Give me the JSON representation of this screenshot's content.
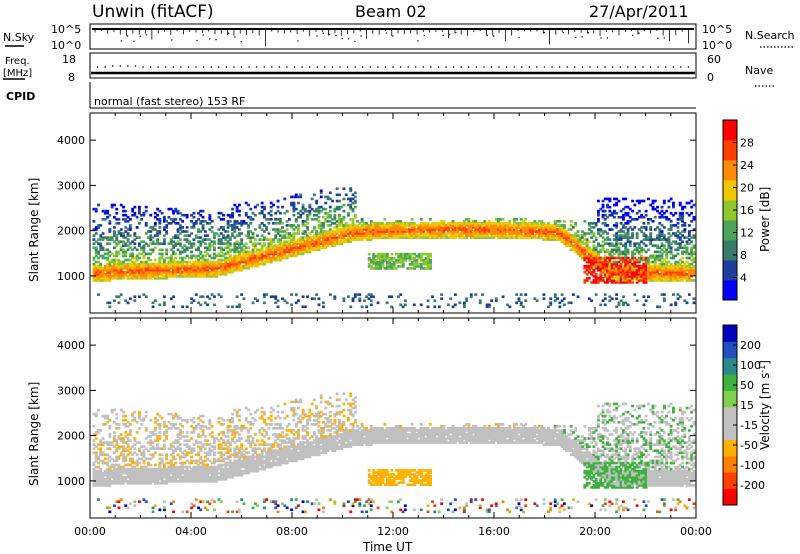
{
  "header": {
    "station": "Unwin (fitACF)",
    "beam": "Beam 02",
    "date": "27/Apr/2011"
  },
  "strip_panels": {
    "nsky": {
      "label": "N.Sky",
      "ticks": [
        "10^5",
        "10^0"
      ],
      "right_label": "N.Search",
      "right_ticks": [
        "10^5",
        "10^0"
      ]
    },
    "freq": {
      "label_line1": "Freq.",
      "label_line2": "[MHz]",
      "ticks": [
        "18",
        "8"
      ],
      "right_label": "Nave",
      "right_ticks": [
        "60",
        "0"
      ]
    },
    "cpid": {
      "label": "CPID",
      "text": "normal (fast stereo) 153 RF"
    }
  },
  "colors": {
    "power_scale": [
      "#0000ff",
      "#1e3fa0",
      "#3a7a6a",
      "#4aa45a",
      "#90c830",
      "#f0c800",
      "#ff8c00",
      "#ff4000",
      "#ff0000"
    ],
    "velocity_scale": [
      "#ff0000",
      "#ff4000",
      "#ff8000",
      "#ffb000",
      "#c0c0c0",
      "#c0c0c0",
      "#80d050",
      "#40b040",
      "#2a8a8a",
      "#2050c0",
      "#0000c0"
    ],
    "ground_scatter": "#c0c0c0"
  },
  "chart_data": [
    {
      "type": "heatmap",
      "title": "",
      "xlabel": "",
      "ylabel": "Slant Range [km]",
      "x_ticks": [
        "00:00",
        "04:00",
        "08:00",
        "12:00",
        "16:00",
        "20:00",
        "00:00"
      ],
      "y_ticks": [
        "1000",
        "2000",
        "3000",
        "4000"
      ],
      "xlim": [
        0,
        24
      ],
      "ylim": [
        180,
        4600
      ],
      "colorbar": {
        "label": "Power [dB]",
        "ticks": [
          "4",
          "8",
          "12",
          "16",
          "20",
          "24",
          "28"
        ],
        "range": [
          0,
          30
        ]
      },
      "features": [
        {
          "type": "main_echo_band",
          "time_range_h": [
            0,
            10.5
          ],
          "range_km_start": 1050,
          "range_km_peak": 1950
        },
        {
          "type": "plateau_band",
          "time_range_h": [
            10.5,
            18.5
          ],
          "range_km": 2000
        },
        {
          "type": "descending_band",
          "time_range_h": [
            18.5,
            20.5
          ],
          "range_km_end": 1100
        },
        {
          "type": "late_band",
          "time_range_h": [
            20,
            24
          ],
          "range_km": 1000
        }
      ]
    },
    {
      "type": "heatmap",
      "title": "",
      "xlabel": "Time UT",
      "ylabel": "Slant Range [km]",
      "x_ticks": [
        "00:00",
        "04:00",
        "08:00",
        "12:00",
        "16:00",
        "20:00",
        "00:00"
      ],
      "y_ticks": [
        "1000",
        "2000",
        "3000",
        "4000"
      ],
      "xlim": [
        0,
        24
      ],
      "ylim": [
        180,
        4600
      ],
      "colorbar": {
        "label": "Velocity [m s^-1]",
        "ticks": [
          "200",
          "100",
          "50",
          "15",
          "-15",
          "-50",
          "-100",
          "-200"
        ],
        "range": [
          -250,
          250
        ]
      }
    }
  ]
}
